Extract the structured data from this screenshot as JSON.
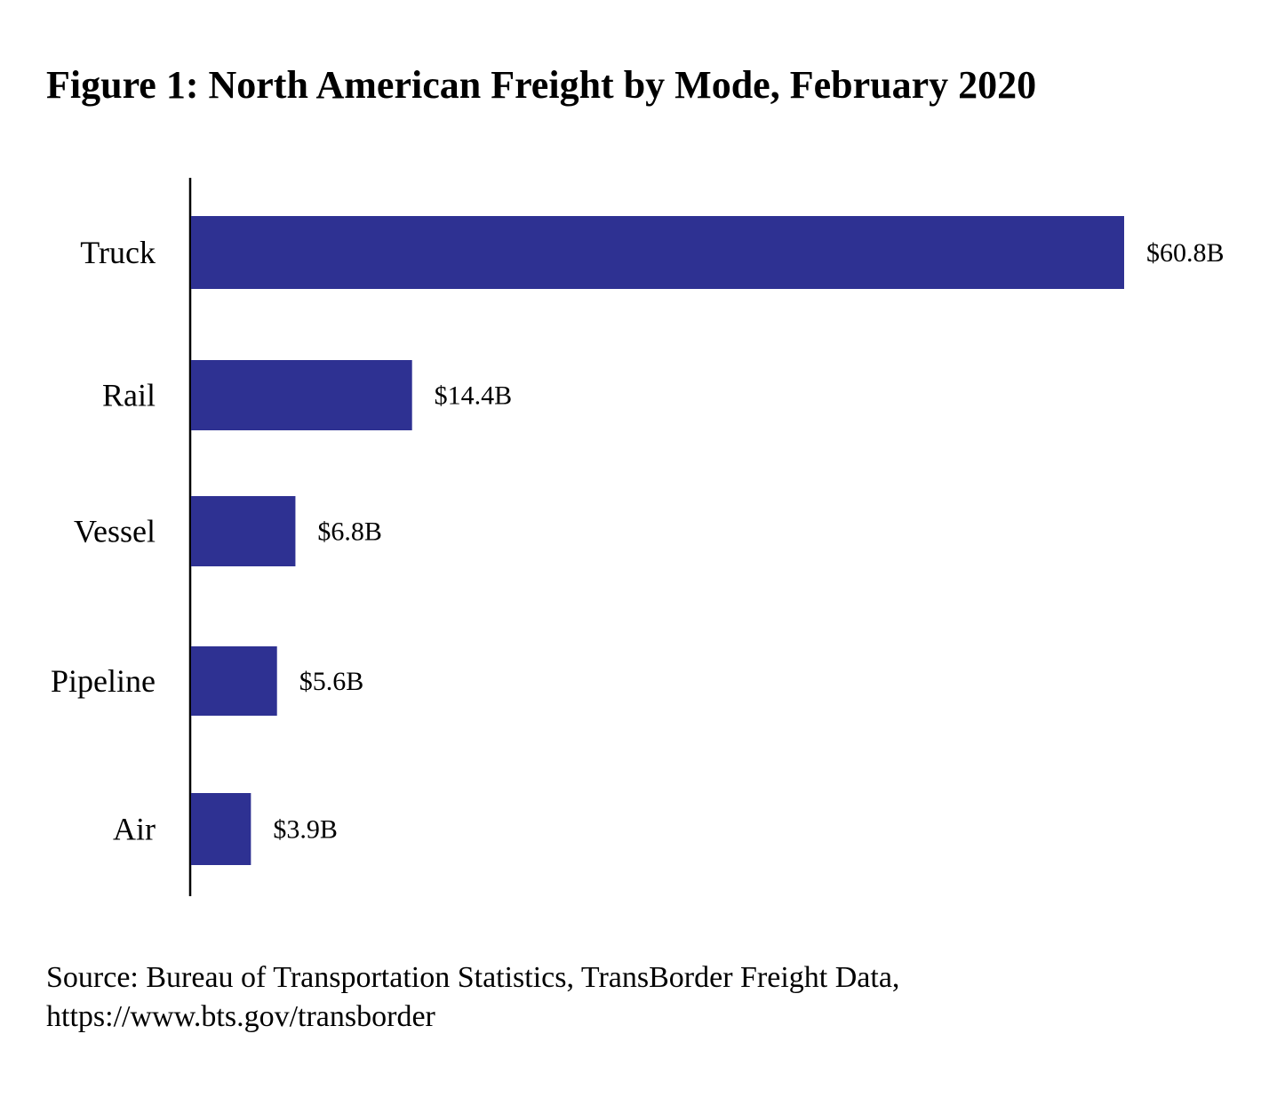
{
  "chart_data": {
    "type": "bar",
    "orientation": "horizontal",
    "title": "Figure 1: North American Freight by Mode, February 2020",
    "categories": [
      "Truck",
      "Rail",
      "Vessel",
      "Pipeline",
      "Air"
    ],
    "values": [
      60.8,
      14.4,
      6.8,
      5.6,
      3.9
    ],
    "data_labels": [
      "$60.8B",
      "$14.4B",
      "$6.8B",
      "$5.6B",
      "$3.9B"
    ],
    "xlabel": "",
    "ylabel": "",
    "xlim": [
      0,
      60.8
    ],
    "grid": false,
    "bar_color": "#2e3192"
  },
  "source": {
    "line1": "Source: Bureau of Transportation Statistics, TransBorder Freight Data,",
    "line2": "https://www.bts.gov/transborder"
  }
}
